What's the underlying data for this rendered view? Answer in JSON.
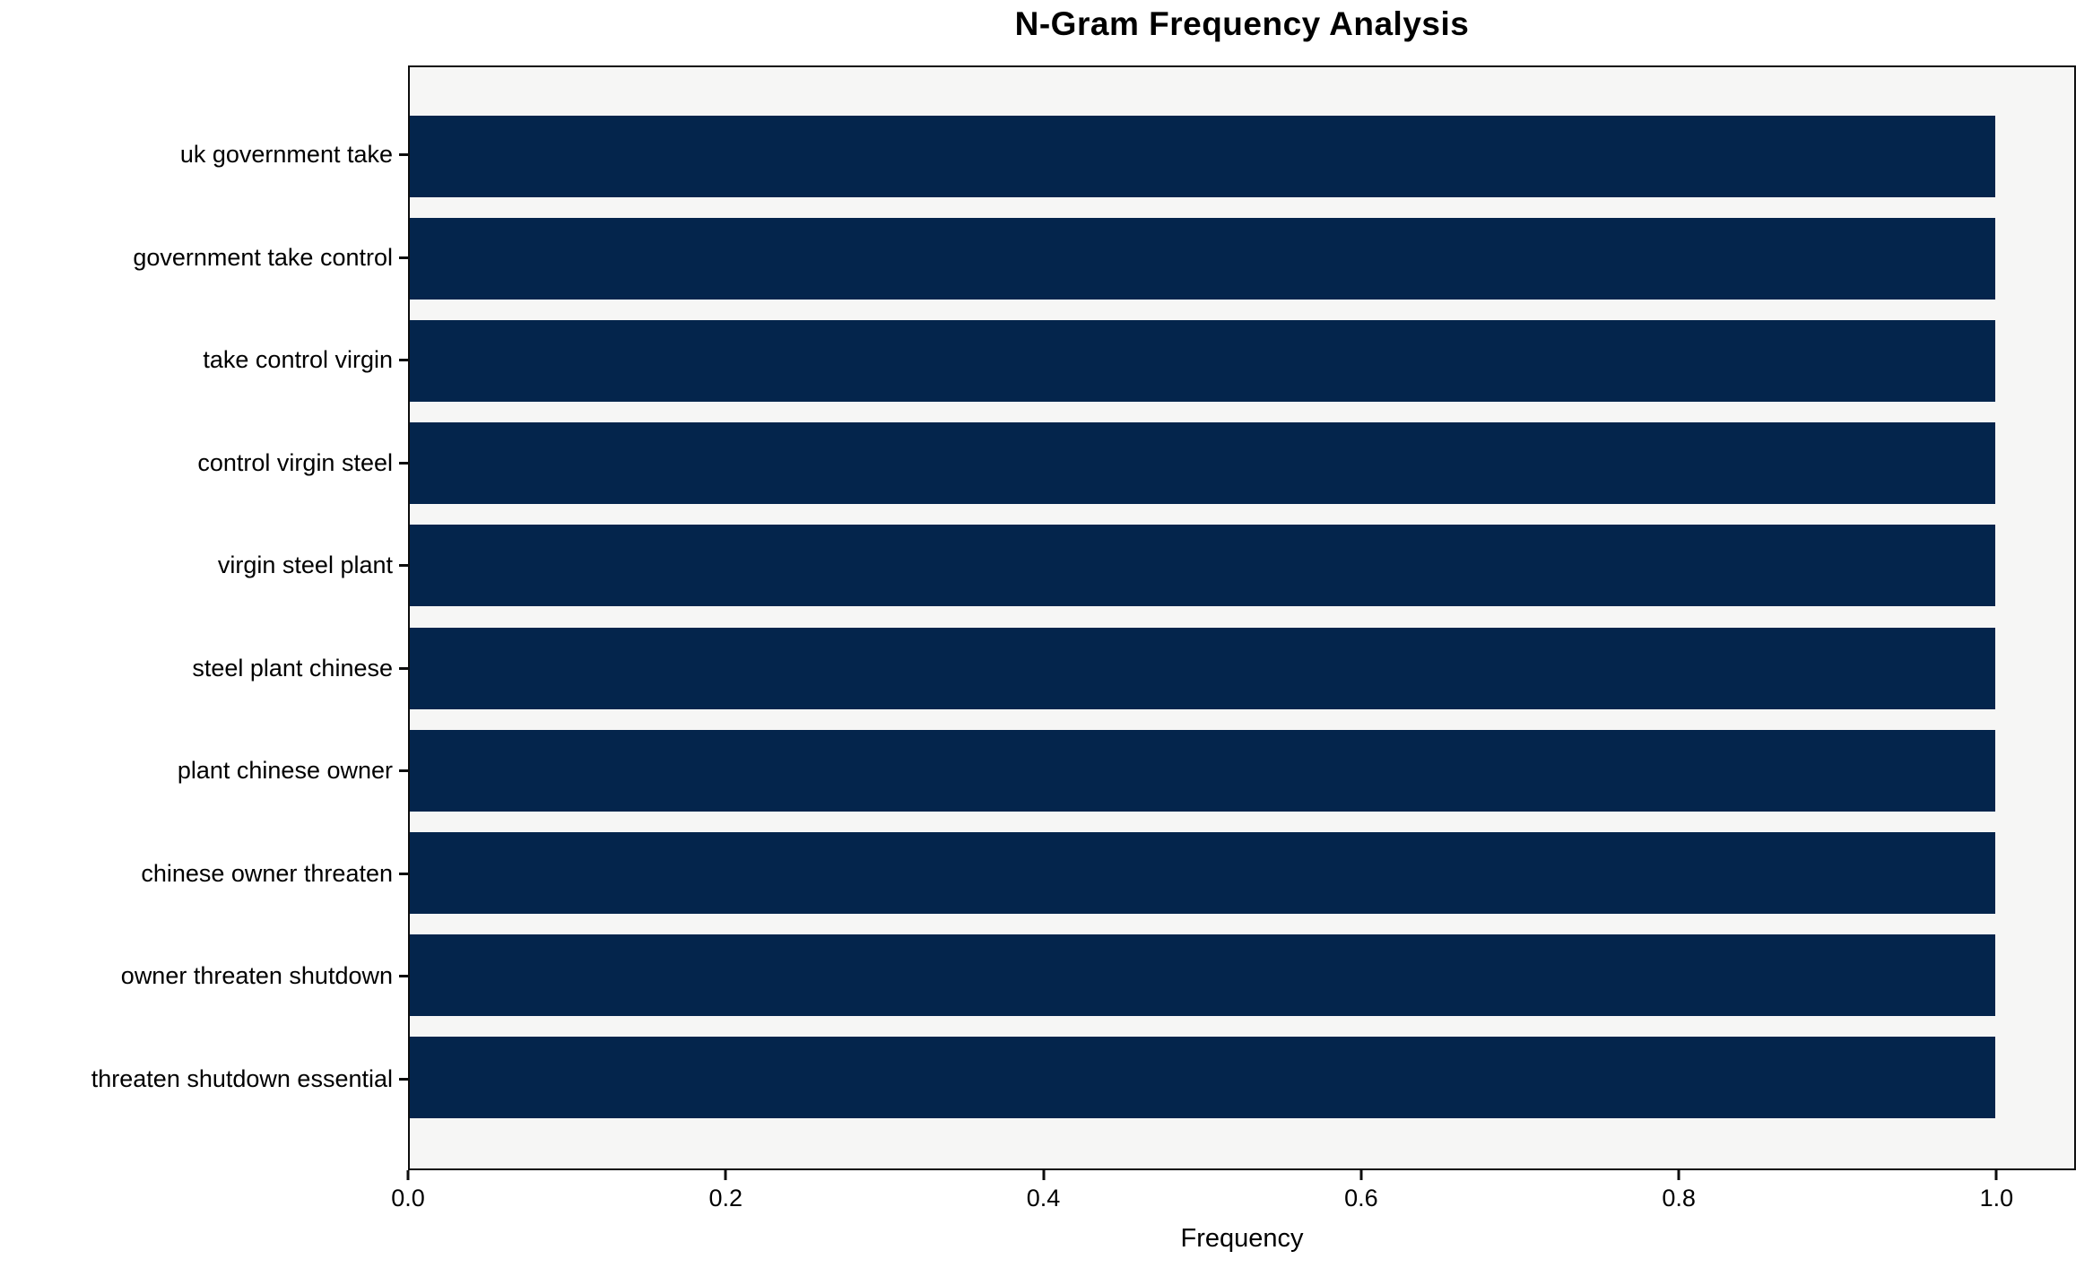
{
  "chart_data": {
    "type": "bar",
    "orientation": "horizontal",
    "title": "N-Gram Frequency Analysis",
    "xlabel": "Frequency",
    "ylabel": "",
    "categories": [
      "uk government take",
      "government take control",
      "take control virgin",
      "control virgin steel",
      "virgin steel plant",
      "steel plant chinese",
      "plant chinese owner",
      "chinese owner threaten",
      "owner threaten shutdown",
      "threaten shutdown essential"
    ],
    "values": [
      1.0,
      1.0,
      1.0,
      1.0,
      1.0,
      1.0,
      1.0,
      1.0,
      1.0,
      1.0
    ],
    "xlim": [
      0,
      1.05
    ],
    "xticks": [
      0.0,
      0.2,
      0.4,
      0.6,
      0.8,
      1.0
    ],
    "xtick_labels": [
      "0.0",
      "0.2",
      "0.4",
      "0.6",
      "0.8",
      "1.0"
    ],
    "grid": false,
    "legend": "none",
    "bar_color": "#04254c",
    "plot_bg": "#f6f6f5",
    "figure_bg": "#ffffff"
  }
}
